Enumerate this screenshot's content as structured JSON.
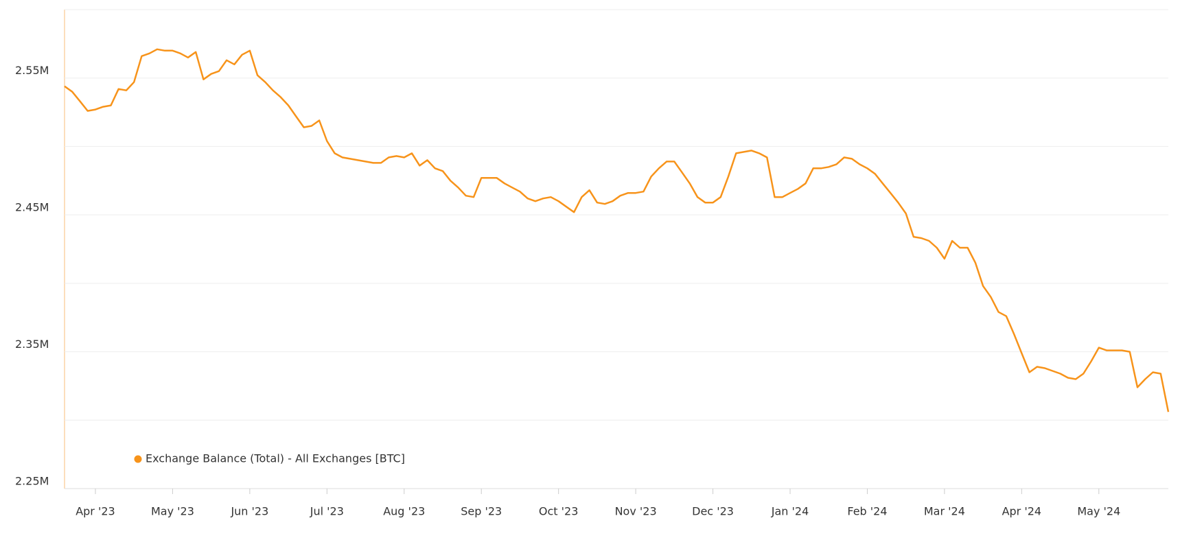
{
  "chart_data": {
    "type": "line",
    "categories": [
      null,
      null,
      null,
      null,
      "Apr '23",
      null,
      null,
      null,
      null,
      null,
      null,
      null,
      null,
      null,
      "May '23",
      null,
      null,
      null,
      null,
      null,
      null,
      null,
      null,
      null,
      "Jun '23",
      null,
      null,
      null,
      null,
      null,
      null,
      null,
      null,
      null,
      "Jul '23",
      null,
      null,
      null,
      null,
      null,
      null,
      null,
      null,
      null,
      "Aug '23",
      null,
      null,
      null,
      null,
      null,
      null,
      null,
      null,
      null,
      "Sep '23",
      null,
      null,
      null,
      null,
      null,
      null,
      null,
      null,
      null,
      "Oct '23",
      null,
      null,
      null,
      null,
      null,
      null,
      null,
      null,
      null,
      "Nov '23",
      null,
      null,
      null,
      null,
      null,
      null,
      null,
      null,
      null,
      "Dec '23",
      null,
      null,
      null,
      null,
      null,
      null,
      null,
      null,
      null,
      "Jan '24",
      null,
      null,
      null,
      null,
      null,
      null,
      null,
      null,
      null,
      "Feb '24",
      null,
      null,
      null,
      null,
      null,
      null,
      null,
      null,
      null,
      "Mar '24",
      null,
      null,
      null,
      null,
      null,
      null,
      null,
      null,
      null,
      "Apr '24",
      null,
      null,
      null,
      null,
      null,
      null,
      null,
      null,
      null,
      "May '24",
      null,
      null,
      null,
      null,
      null,
      null,
      null,
      null,
      null
    ],
    "series": [
      {
        "name": "Exchange Balance (Total) - All Exchanges [BTC]",
        "color": "#f7931a",
        "values": [
          2544000,
          2540000,
          2533000,
          2526000,
          2527000,
          2529000,
          2530000,
          2542000,
          2541000,
          2547000,
          2566000,
          2568000,
          2571000,
          2570000,
          2570000,
          2568000,
          2565000,
          2569000,
          2549000,
          2553000,
          2555000,
          2563000,
          2560000,
          2567000,
          2570000,
          2552000,
          2547000,
          2541000,
          2536000,
          2530000,
          2522000,
          2514000,
          2515000,
          2519000,
          2504000,
          2495000,
          2492000,
          2491000,
          2490000,
          2489000,
          2488000,
          2488000,
          2492000,
          2493000,
          2492000,
          2495000,
          2486000,
          2490000,
          2484000,
          2482000,
          2475000,
          2470000,
          2464000,
          2463000,
          2477000,
          2477000,
          2477000,
          2473000,
          2470000,
          2467000,
          2462000,
          2460000,
          2462000,
          2463000,
          2460000,
          2456000,
          2452000,
          2463000,
          2468000,
          2459000,
          2458000,
          2460000,
          2464000,
          2466000,
          2466000,
          2467000,
          2478000,
          2484000,
          2489000,
          2489000,
          2481000,
          2473000,
          2463000,
          2459000,
          2459000,
          2463000,
          2478000,
          2495000,
          2496000,
          2497000,
          2495000,
          2492000,
          2463000,
          2463000,
          2466000,
          2469000,
          2473000,
          2484000,
          2484000,
          2485000,
          2487000,
          2492000,
          2491000,
          2487000,
          2484000,
          2480000,
          2473000,
          2466000,
          2459000,
          2451000,
          2434000,
          2433000,
          2431000,
          2426000,
          2418000,
          2431000,
          2426000,
          2426000,
          2415000,
          2398000,
          2390000,
          2379000,
          2376000,
          2363000,
          2349000,
          2335000,
          2339000,
          2338000,
          2336000,
          2334000,
          2331000,
          2330000,
          2334000,
          2343000,
          2353000,
          2351000,
          2351000,
          2351000,
          2350000,
          2324000,
          2330000,
          2335000,
          2334000,
          2306000
        ]
      }
    ],
    "ylim": [
      2250000,
      2600000
    ],
    "yticks": [
      {
        "value": 2250000,
        "label": "2.25M"
      },
      {
        "value": 2300000,
        "label": null
      },
      {
        "value": 2350000,
        "label": "2.35M"
      },
      {
        "value": 2400000,
        "label": null
      },
      {
        "value": 2450000,
        "label": "2.45M"
      },
      {
        "value": 2500000,
        "label": null
      },
      {
        "value": 2550000,
        "label": "2.55M"
      },
      {
        "value": 2600000,
        "label": null
      }
    ],
    "grid": true
  }
}
